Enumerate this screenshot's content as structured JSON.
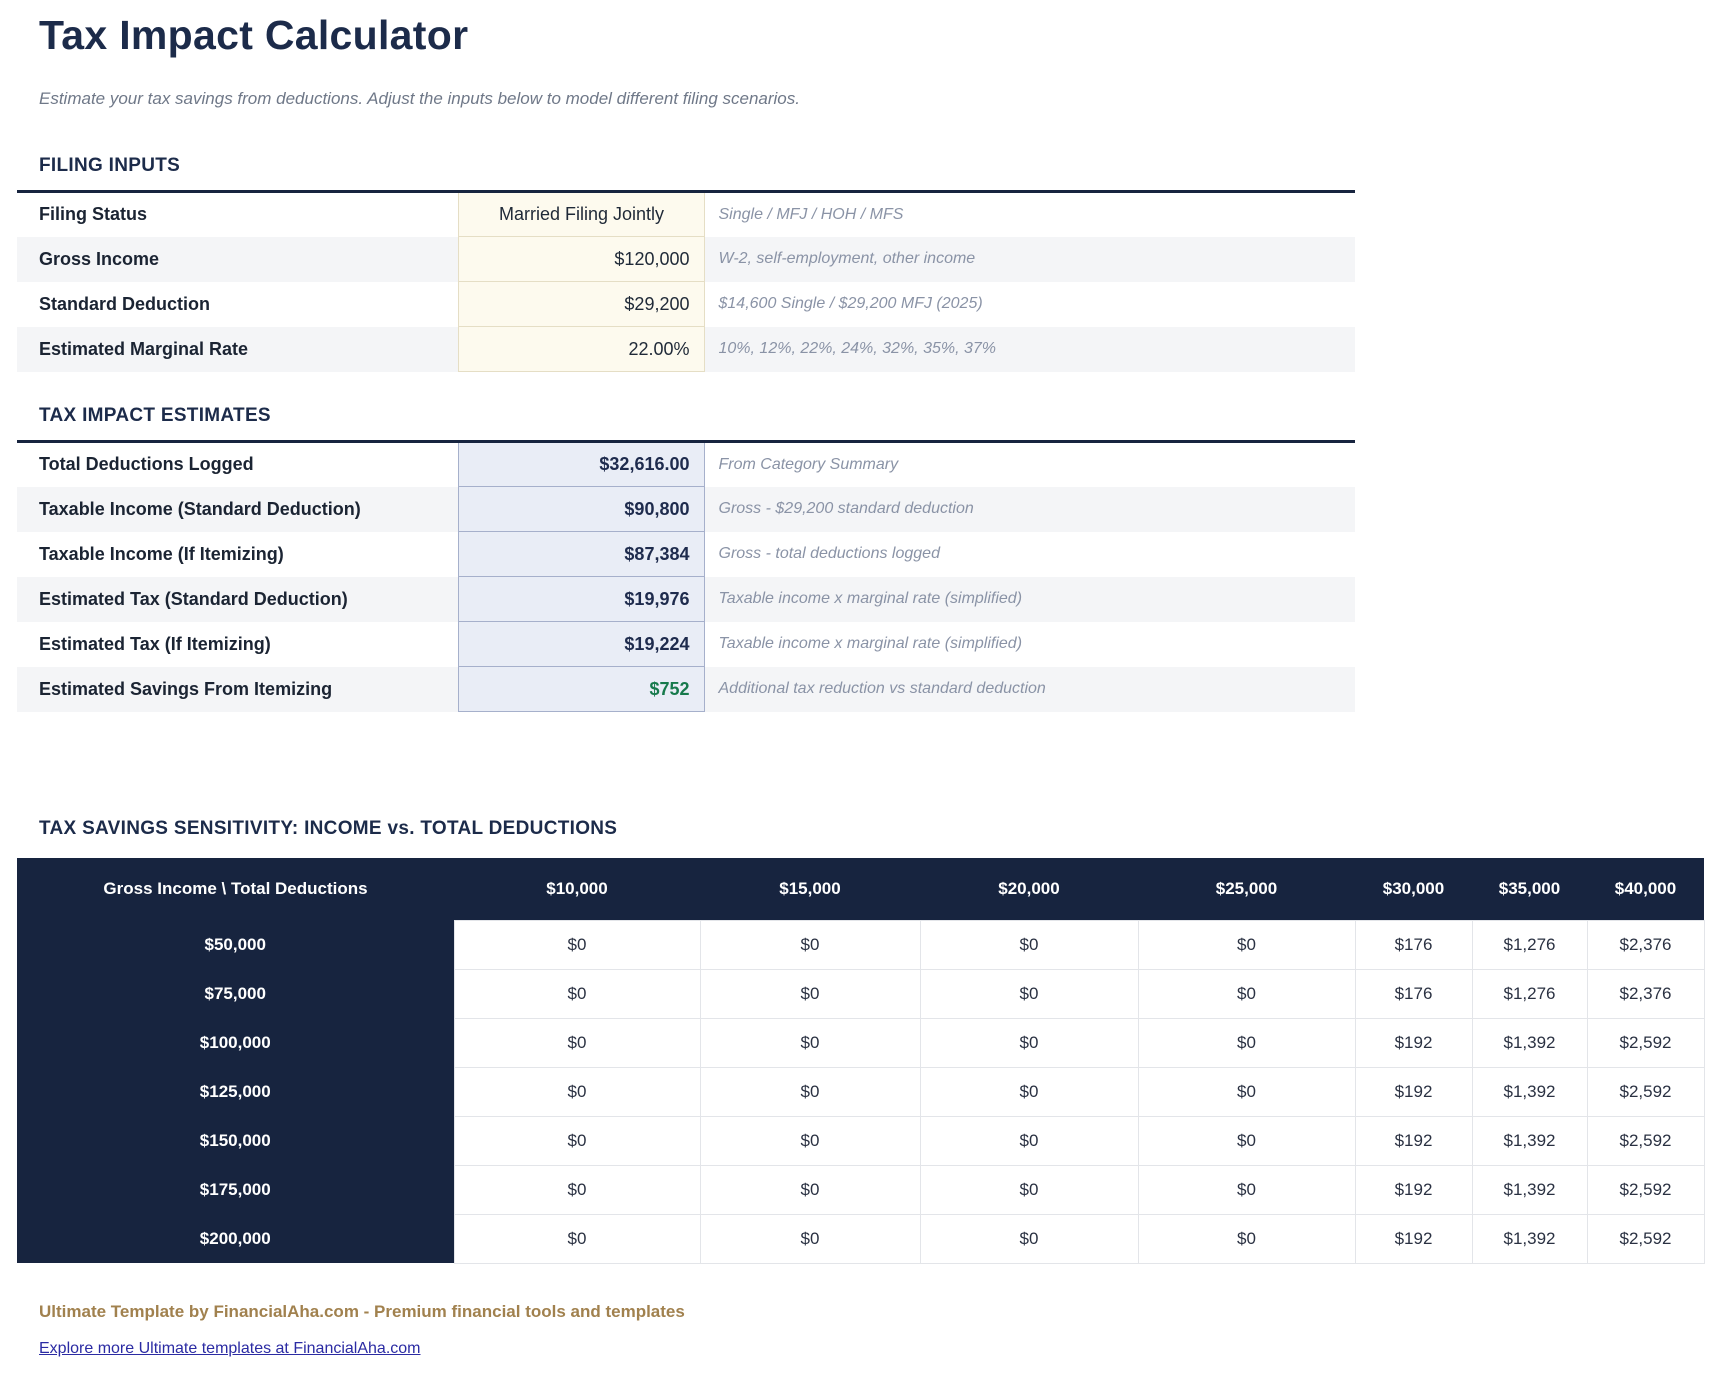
{
  "page": {
    "title": "Tax Impact Calculator",
    "subtitle": "Estimate your tax savings from deductions. Adjust the inputs below to model different filing scenarios."
  },
  "filing_inputs": {
    "heading": "FILING INPUTS",
    "rows": [
      {
        "label": "Filing Status",
        "value": "Married Filing Jointly",
        "hint": "Single / MFJ / HOH / MFS"
      },
      {
        "label": "Gross Income",
        "value": "$120,000",
        "hint": "W-2, self-employment, other income"
      },
      {
        "label": "Standard Deduction",
        "value": "$29,200",
        "hint": "$14,600 Single / $29,200 MFJ (2025)"
      },
      {
        "label": "Estimated Marginal Rate",
        "value": "22.00%",
        "hint": "10%, 12%, 22%, 24%, 32%, 35%, 37%"
      }
    ]
  },
  "estimates": {
    "heading": "TAX IMPACT ESTIMATES",
    "rows": [
      {
        "label": "Total Deductions Logged",
        "value": "$32,616.00",
        "hint": "From Category Summary"
      },
      {
        "label": "Taxable Income (Standard Deduction)",
        "value": "$90,800",
        "hint": "Gross - $29,200 standard deduction"
      },
      {
        "label": "Taxable Income (If Itemizing)",
        "value": "$87,384",
        "hint": "Gross - total deductions logged"
      },
      {
        "label": "Estimated Tax (Standard Deduction)",
        "value": "$19,976",
        "hint": "Taxable income x marginal rate (simplified)"
      },
      {
        "label": "Estimated Tax (If Itemizing)",
        "value": "$19,224",
        "hint": "Taxable income x marginal rate (simplified)"
      },
      {
        "label": "Estimated Savings From Itemizing",
        "value": "$752",
        "hint": "Additional tax reduction vs standard deduction"
      }
    ]
  },
  "sensitivity": {
    "heading": "TAX SAVINGS SENSITIVITY: INCOME vs. TOTAL DEDUCTIONS",
    "corner_label": "Gross Income \\ Total Deductions",
    "column_headers": [
      "$10,000",
      "$15,000",
      "$20,000",
      "$25,000",
      "$30,000",
      "$35,000",
      "$40,000"
    ],
    "rows": [
      {
        "label": "$50,000",
        "values": [
          "$0",
          "$0",
          "$0",
          "$0",
          "$176",
          "$1,276",
          "$2,376"
        ]
      },
      {
        "label": "$75,000",
        "values": [
          "$0",
          "$0",
          "$0",
          "$0",
          "$176",
          "$1,276",
          "$2,376"
        ]
      },
      {
        "label": "$100,000",
        "values": [
          "$0",
          "$0",
          "$0",
          "$0",
          "$192",
          "$1,392",
          "$2,592"
        ]
      },
      {
        "label": "$125,000",
        "values": [
          "$0",
          "$0",
          "$0",
          "$0",
          "$192",
          "$1,392",
          "$2,592"
        ]
      },
      {
        "label": "$150,000",
        "values": [
          "$0",
          "$0",
          "$0",
          "$0",
          "$192",
          "$1,392",
          "$2,592"
        ]
      },
      {
        "label": "$175,000",
        "values": [
          "$0",
          "$0",
          "$0",
          "$0",
          "$192",
          "$1,392",
          "$2,592"
        ]
      },
      {
        "label": "$200,000",
        "values": [
          "$0",
          "$0",
          "$0",
          "$0",
          "$192",
          "$1,392",
          "$2,592"
        ]
      }
    ]
  },
  "footer": {
    "branding": "Ultimate Template by FinancialAha.com - Premium financial tools and templates",
    "link": "Explore more Ultimate templates at FinancialAha.com"
  },
  "colors": {
    "navy": "#17243f",
    "accent_green": "#177a4c",
    "input_cell_bg": "#fdfaee",
    "calc_cell_bg": "#e9edf6",
    "row_stripe": "#f4f5f7",
    "brand_gold": "#a1814e",
    "link_blue": "#2b2ba3"
  }
}
